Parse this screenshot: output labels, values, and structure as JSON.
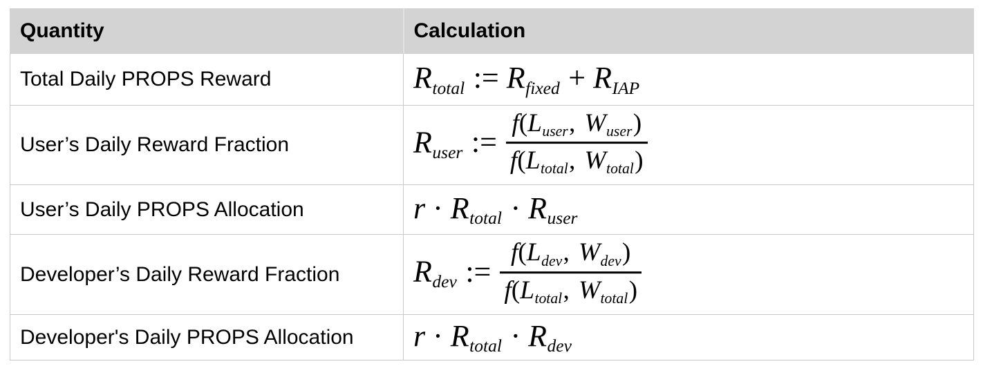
{
  "colors": {
    "header_bg": "#d3d3d3",
    "border_color": "#c9c9c9",
    "text": "#000000",
    "page_bg": "#ffffff"
  },
  "table": {
    "header": {
      "quantity": "Quantity",
      "calculation": "Calculation"
    },
    "rows": [
      {
        "quantity": "Total Daily PROPS Reward",
        "formula_text": "R_total := R_fixed + R_IAP",
        "formula": [
          {
            "t": "v",
            "x": "R"
          },
          {
            "t": "s",
            "x": "total"
          },
          {
            "t": "o",
            "x": ":="
          },
          {
            "t": "v",
            "x": "R"
          },
          {
            "t": "s",
            "x": "fixed"
          },
          {
            "t": "o",
            "x": "+"
          },
          {
            "t": "v",
            "x": "R"
          },
          {
            "t": "s",
            "x": "IAP"
          }
        ]
      },
      {
        "quantity": "User’s Daily Reward Fraction",
        "formula_text": "R_user := f(L_user, W_user) / f(L_total, W_total)",
        "formula": [
          {
            "t": "v",
            "x": "R"
          },
          {
            "t": "s",
            "x": "user"
          },
          {
            "t": "o",
            "x": ":="
          },
          {
            "t": "f",
            "num": [
              {
                "t": "v",
                "x": "f"
              },
              {
                "t": "p",
                "x": "("
              },
              {
                "t": "v",
                "x": "L"
              },
              {
                "t": "s",
                "x": "user"
              },
              {
                "t": "c",
                "x": ","
              },
              {
                "t": "v",
                "x": "W"
              },
              {
                "t": "s",
                "x": "user"
              },
              {
                "t": "p",
                "x": ")"
              }
            ],
            "den": [
              {
                "t": "v",
                "x": "f"
              },
              {
                "t": "p",
                "x": "("
              },
              {
                "t": "v",
                "x": "L"
              },
              {
                "t": "s",
                "x": "total"
              },
              {
                "t": "c",
                "x": ","
              },
              {
                "t": "v",
                "x": "W"
              },
              {
                "t": "s",
                "x": "total"
              },
              {
                "t": "p",
                "x": ")"
              }
            ]
          }
        ]
      },
      {
        "quantity": "User’s Daily PROPS Allocation",
        "formula_text": "r · R_total · R_user",
        "formula": [
          {
            "t": "v",
            "x": "r"
          },
          {
            "t": "o",
            "x": "·"
          },
          {
            "t": "v",
            "x": "R"
          },
          {
            "t": "s",
            "x": "total"
          },
          {
            "t": "o",
            "x": "·"
          },
          {
            "t": "v",
            "x": "R"
          },
          {
            "t": "s",
            "x": "user"
          }
        ]
      },
      {
        "quantity": "Developer’s Daily Reward Fraction",
        "formula_text": "R_dev := f(L_dev, W_dev) / f(L_total, W_total)",
        "formula": [
          {
            "t": "v",
            "x": "R"
          },
          {
            "t": "s",
            "x": "dev"
          },
          {
            "t": "o",
            "x": ":="
          },
          {
            "t": "f",
            "num": [
              {
                "t": "v",
                "x": "f"
              },
              {
                "t": "p",
                "x": "("
              },
              {
                "t": "v",
                "x": "L"
              },
              {
                "t": "s",
                "x": "dev"
              },
              {
                "t": "c",
                "x": ","
              },
              {
                "t": "v",
                "x": "W"
              },
              {
                "t": "s",
                "x": "dev"
              },
              {
                "t": "p",
                "x": ")"
              }
            ],
            "den": [
              {
                "t": "v",
                "x": "f"
              },
              {
                "t": "p",
                "x": "("
              },
              {
                "t": "v",
                "x": "L"
              },
              {
                "t": "s",
                "x": "total"
              },
              {
                "t": "c",
                "x": ","
              },
              {
                "t": "v",
                "x": "W"
              },
              {
                "t": "s",
                "x": "total"
              },
              {
                "t": "p",
                "x": ")"
              }
            ]
          }
        ]
      },
      {
        "quantity": "Developer's Daily PROPS Allocation",
        "formula_text": "r · R_total · R_dev",
        "formula": [
          {
            "t": "v",
            "x": "r"
          },
          {
            "t": "o",
            "x": "·"
          },
          {
            "t": "v",
            "x": "R"
          },
          {
            "t": "s",
            "x": "total"
          },
          {
            "t": "o",
            "x": "·"
          },
          {
            "t": "v",
            "x": "R"
          },
          {
            "t": "s",
            "x": "dev"
          }
        ]
      }
    ]
  }
}
